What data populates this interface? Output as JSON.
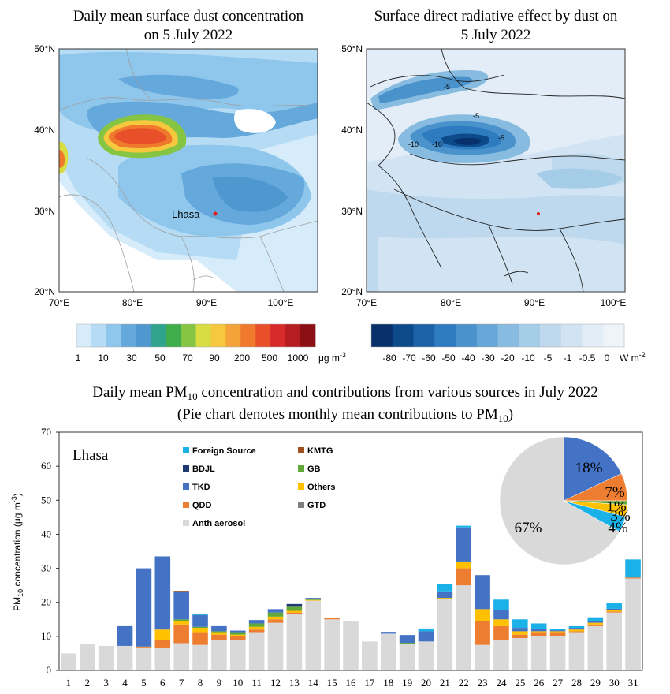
{
  "colors": {
    "foreign": "#1ab0e8",
    "kmtg": "#a0501e",
    "bdjl": "#1f3a72",
    "gb": "#62a838",
    "tkd": "#4472c4",
    "others": "#ffc000",
    "qdd": "#ed7d31",
    "gtd": "#7f7f7f",
    "anth": "#d9d9d9"
  },
  "maps": {
    "left": {
      "title_line1": "Daily mean surface dust concentration",
      "title_line2": "on 5 July 2022",
      "city_label": "Lhasa",
      "lat_ticks": [
        "50°N",
        "40°N",
        "30°N",
        "20°N"
      ],
      "lon_ticks": [
        "70°E",
        "80°E",
        "90°E",
        "100°E"
      ],
      "colorbar_labels": [
        "1",
        "10",
        "30",
        "50",
        "70",
        "90",
        "200",
        "500",
        "1000"
      ],
      "colorbar_unit": "μg m",
      "colorbar_unit_sup": "-3",
      "colorbar_colors": [
        "#d6ecfa",
        "#b5dcf4",
        "#8ec6ec",
        "#64a8dc",
        "#4f97cf",
        "#2fa38c",
        "#3fae4a",
        "#86c543",
        "#d8dd41",
        "#f5c83d",
        "#f3a33a",
        "#ef7a2e",
        "#e8502a",
        "#d72b2b",
        "#b51d22",
        "#8b1016"
      ]
    },
    "right": {
      "title_line1": "Surface direct radiative effect by dust on",
      "title_line2": "5 July 2022",
      "lat_ticks": [
        "50°N",
        "40°N",
        "30°N",
        "20°N"
      ],
      "lon_ticks": [
        "70°E",
        "80°E",
        "90°E",
        "100°E"
      ],
      "colorbar_labels": [
        "-80",
        "-70",
        "-60",
        "-50",
        "-40",
        "-30",
        "-20",
        "-10",
        "-5",
        "-1",
        "-0.5",
        "0"
      ],
      "colorbar_unit": "W m",
      "colorbar_unit_sup": "-2",
      "contour_labels": [
        "-5",
        "-10",
        "-5",
        "-10",
        "-5"
      ],
      "colorbar_colors": [
        "#08306b",
        "#0d4a8a",
        "#1c63a8",
        "#2f7bbf",
        "#4a92cc",
        "#66a7d7",
        "#87bce0",
        "#a5cde8",
        "#bed9ee",
        "#d2e4f3",
        "#e2edf7",
        "#eef4fa"
      ]
    }
  },
  "chart_data": {
    "type": "bar",
    "title": "Daily mean PM",
    "title_sub": "10",
    "title_rest": " concentration and contributions from various sources in July 2022",
    "subtitle": "(Pie chart denotes monthly mean contributions to PM",
    "subtitle_sub": "10",
    "subtitle_end": ")",
    "location_label": "Lhasa",
    "ylabel": "PM",
    "ylabel_sub": "10",
    "ylabel_rest": " concentration (μg m",
    "ylabel_sup": "-3",
    "ylabel_end": ")",
    "ylim": [
      0,
      70
    ],
    "yticks": [
      "0",
      "10",
      "20",
      "30",
      "40",
      "50",
      "60",
      "70"
    ],
    "categories": [
      "1",
      "2",
      "3",
      "4",
      "5",
      "6",
      "7",
      "8",
      "9",
      "10",
      "11",
      "12",
      "13",
      "14",
      "15",
      "16",
      "17",
      "18",
      "19",
      "20",
      "21",
      "22",
      "23",
      "24",
      "25",
      "26",
      "27",
      "28",
      "29",
      "30",
      "31"
    ],
    "legend": [
      {
        "name": "Foreign Source",
        "key": "foreign"
      },
      {
        "name": "KMTG",
        "key": "kmtg"
      },
      {
        "name": "BDJL",
        "key": "bdjl"
      },
      {
        "name": "GB",
        "key": "gb"
      },
      {
        "name": "TKD",
        "key": "tkd"
      },
      {
        "name": "Others",
        "key": "others"
      },
      {
        "name": "QDD",
        "key": "qdd"
      },
      {
        "name": "GTD",
        "key": "gtd"
      },
      {
        "name": "Anth aerosol",
        "key": "anth"
      }
    ],
    "series": [
      {
        "name": "Anth aerosol",
        "key": "anth",
        "values": [
          5,
          7.8,
          7.2,
          7.2,
          6.5,
          6.5,
          8,
          7.5,
          9,
          9,
          11,
          14,
          16.5,
          20.5,
          15,
          14.5,
          8.5,
          10.8,
          7.8,
          8.5,
          21,
          25,
          7.5,
          9,
          9.5,
          10,
          10,
          11,
          13,
          17,
          27
        ]
      },
      {
        "name": "QDD",
        "key": "qdd",
        "values": [
          0,
          0,
          0,
          0,
          0.2,
          2.5,
          5.5,
          3.5,
          1.5,
          1,
          1,
          1,
          0.5,
          0,
          0.3,
          0,
          0,
          0,
          0,
          0,
          0,
          5,
          7,
          4,
          1,
          1,
          1,
          0.5,
          0.5,
          0.3,
          0.3
        ]
      },
      {
        "name": "Others",
        "key": "others",
        "values": [
          0,
          0,
          0,
          0,
          0.3,
          3,
          1,
          1.5,
          0.5,
          0.5,
          0.8,
          0.8,
          0.5,
          0.2,
          0,
          0,
          0,
          0,
          0,
          0,
          0.3,
          2,
          3.5,
          2,
          1,
          0.5,
          0.5,
          0.5,
          0.5,
          0.5,
          0
        ]
      },
      {
        "name": "GB",
        "key": "gb",
        "values": [
          0,
          0,
          0,
          0,
          0,
          0,
          0.5,
          0.3,
          0.5,
          0.5,
          1,
          1.2,
          1.2,
          0.3,
          0,
          0,
          0,
          0,
          0.3,
          0,
          0,
          0,
          0,
          0,
          0,
          0,
          0,
          0,
          0,
          0,
          0
        ]
      },
      {
        "name": "BDJL",
        "key": "bdjl",
        "values": [
          0,
          0,
          0,
          0,
          0,
          0,
          0,
          0,
          0,
          0,
          0,
          0,
          0.8,
          0,
          0,
          0,
          0,
          0,
          0,
          0,
          0,
          0,
          0,
          0,
          0,
          0,
          0,
          0,
          0,
          0,
          0
        ]
      },
      {
        "name": "TKD",
        "key": "tkd",
        "values": [
          0,
          0,
          0,
          5.8,
          23,
          21.5,
          8,
          3.5,
          1.5,
          0.7,
          1,
          1,
          0,
          0.3,
          0,
          0,
          0,
          0.3,
          2.3,
          3,
          1.7,
          10,
          10,
          2.8,
          1,
          0.7,
          0.3,
          0.5,
          0.5,
          0.3,
          0
        ]
      },
      {
        "name": "KMTG",
        "key": "kmtg",
        "values": [
          0,
          0,
          0,
          0,
          0,
          0,
          0.2,
          0,
          0,
          0,
          0,
          0,
          0,
          0,
          0,
          0,
          0,
          0,
          0,
          0,
          0,
          0,
          0,
          0,
          0,
          0,
          0,
          0,
          0,
          0,
          0
        ]
      },
      {
        "name": "Foreign Source",
        "key": "foreign",
        "values": [
          0,
          0,
          0,
          0,
          0,
          0,
          0,
          0.2,
          0,
          0,
          0,
          0,
          0,
          0,
          0,
          0,
          0,
          0,
          0,
          0.8,
          2.5,
          0.5,
          0,
          3,
          2.5,
          1.6,
          0.4,
          0.5,
          1.1,
          1.6,
          5.3
        ]
      },
      {
        "name": "GTD",
        "key": "gtd",
        "values": [
          0,
          0,
          0,
          0,
          0,
          0,
          0,
          0,
          0,
          0,
          0,
          0,
          0,
          0,
          0,
          0,
          0,
          0,
          0,
          0,
          0,
          0,
          0,
          0,
          0,
          0,
          0,
          0,
          0,
          0,
          0
        ]
      }
    ],
    "pie": [
      {
        "name": "TKD",
        "key": "tkd",
        "value": 18,
        "label": "18%"
      },
      {
        "name": "QDD",
        "key": "qdd",
        "value": 7,
        "label": "7%"
      },
      {
        "name": "GB",
        "key": "gb",
        "value": 1,
        "label": "1%"
      },
      {
        "name": "Others",
        "key": "others",
        "value": 3,
        "label": "3%"
      },
      {
        "name": "Foreign Source",
        "key": "foreign",
        "value": 4,
        "label": "4%"
      },
      {
        "name": "Anth aerosol",
        "key": "anth",
        "value": 67,
        "label": "67%"
      }
    ]
  }
}
